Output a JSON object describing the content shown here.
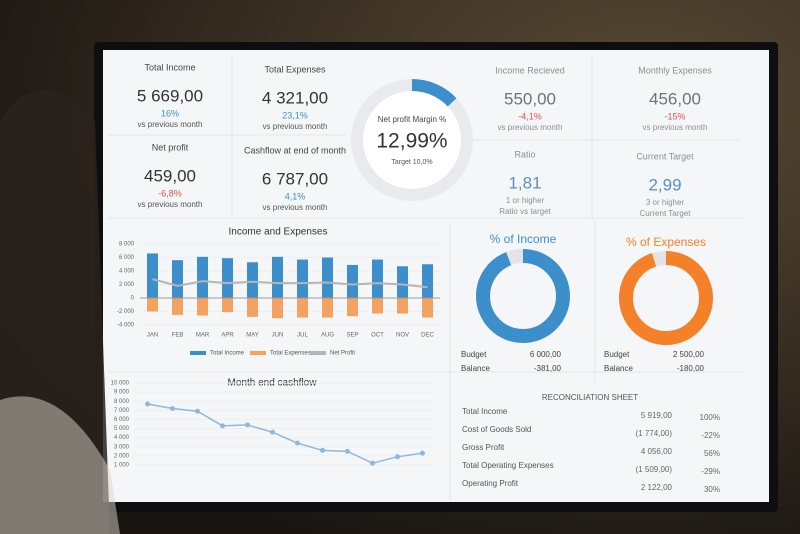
{
  "kpis": [
    {
      "label": "Total Income",
      "value": "5 669,00",
      "change": "16%",
      "change_color": "#3d8fcc",
      "notes": [
        "vs previous month"
      ]
    },
    {
      "label": "Total Expenses",
      "value": "4 321,00",
      "change": "23,1%",
      "change_color": "#3d8fcc",
      "notes": [
        "vs previous month"
      ]
    },
    {
      "label": "Net profit",
      "value": "459,00",
      "change": "-6,8%",
      "change_color": "#d9534f",
      "notes": [
        "vs previous month"
      ]
    },
    {
      "label": "Cashflow at end of month",
      "value": "6 787,00",
      "change": "4,1%",
      "change_color": "#3d8fcc",
      "notes": [
        "vs previous month"
      ]
    },
    {
      "label": "Income Recieved",
      "value": "550,00",
      "change": "-4,1%",
      "change_color": "#d9534f",
      "notes": [
        "vs previous month"
      ]
    },
    {
      "label": "Monthly Expenses",
      "value": "456,00",
      "change": "-15%",
      "change_color": "#d9534f",
      "notes": [
        "vs previous month"
      ]
    },
    {
      "label": "Ratio",
      "value": "1,81",
      "value_color": "#5b8fc7",
      "notes": [
        "1 or higher",
        "Ratio vs target"
      ]
    },
    {
      "label": "Current Target",
      "value": "2,99",
      "value_color": "#5b8fc7",
      "notes": [
        "3 or higher",
        "Current Target"
      ]
    }
  ],
  "chart_data": [
    {
      "type": "bar",
      "title": "Income and Expenses",
      "categories": [
        "JAN",
        "FEB",
        "MAR",
        "APR",
        "MAY",
        "JUN",
        "JUL",
        "AUG",
        "SEP",
        "OCT",
        "NOV",
        "DEC"
      ],
      "series": [
        {
          "name": "Total Income",
          "kind": "bar",
          "color": "#3d8fcc",
          "values": [
            6600,
            5600,
            6100,
            5900,
            5300,
            6100,
            5700,
            6000,
            4900,
            5700,
            4700,
            5000
          ]
        },
        {
          "name": "Total Expenses",
          "kind": "bar",
          "color": "#f4a261",
          "values": [
            -2000,
            -2500,
            -2600,
            -2100,
            -2800,
            -3000,
            -2900,
            -2900,
            -2700,
            -2300,
            -2300,
            -2900
          ]
        },
        {
          "name": "Net Profit",
          "kind": "line",
          "color": "#b5b5b5",
          "values": [
            2800,
            1800,
            2500,
            2200,
            2400,
            2200,
            2200,
            2300,
            2000,
            2200,
            2000,
            1600
          ]
        }
      ],
      "ylim": [
        -4000,
        8000
      ],
      "yticks": [
        {
          "value": 8000,
          "label": "8 000"
        },
        {
          "value": 6000,
          "label": "6 000"
        },
        {
          "value": 4000,
          "label": "4 000"
        },
        {
          "value": 2000,
          "label": "2 000"
        },
        0,
        {
          "value": -2000,
          "label": "-2 000"
        },
        {
          "value": -4000,
          "label": "-4 000"
        }
      ]
    },
    {
      "type": "donut",
      "title": "% of Income",
      "values": [
        94
      ],
      "color": "#3d8fcc",
      "rows": [
        {
          "label": "Budget",
          "value": "6 000,00"
        },
        {
          "label": "Balance",
          "value": "-381,00"
        }
      ]
    },
    {
      "type": "donut",
      "title": "% of Expenses",
      "values": [
        95
      ],
      "color": "#f4812a",
      "rows": [
        {
          "label": "Budget",
          "value": "2 500,00"
        },
        {
          "label": "Balance",
          "value": "-180,00"
        }
      ]
    },
    {
      "type": "line",
      "title": "Month end cashflow",
      "color": "#8fb8dc",
      "values": [
        7700,
        7200,
        6900,
        5300,
        5400,
        4600,
        3400,
        2600,
        2500,
        1200,
        1900,
        2300
      ],
      "ylim": [
        1000,
        10000
      ],
      "yticks": [
        {
          "value": 10000,
          "label": "10 000"
        },
        {
          "value": 9000,
          "label": "9 000"
        },
        {
          "value": 8000,
          "label": "8 000"
        },
        {
          "value": 7000,
          "label": "7 000"
        },
        {
          "value": 6000,
          "label": "6 000"
        },
        {
          "value": 5000,
          "label": "5 000"
        },
        {
          "value": 4000,
          "label": "4 000"
        },
        {
          "value": 3000,
          "label": "3 000"
        },
        {
          "value": 2000,
          "label": "2 000"
        },
        {
          "value": 1000,
          "label": "1 000"
        }
      ]
    },
    {
      "type": "gauge",
      "title": "Net profit Margin %",
      "values": [
        12.99
      ],
      "value_labels": [
        "12,99%"
      ],
      "subtitle": "Target 10,0%",
      "color": "#3d8fcc"
    }
  ],
  "reconciliation": {
    "title": "RECONCILIATION SHEET",
    "rows": [
      [
        "Total Income",
        "5 919,00",
        "100%"
      ],
      [
        "Cost of Goods Sold",
        "(1 774,00)",
        "-22%"
      ],
      [
        "Gross Profit",
        "4 056,00",
        "56%"
      ],
      [
        "Total Operating Expenses",
        "(1 509,00)",
        "-29%"
      ],
      [
        "Operating Profit",
        "2 122,00",
        "30%"
      ]
    ]
  }
}
